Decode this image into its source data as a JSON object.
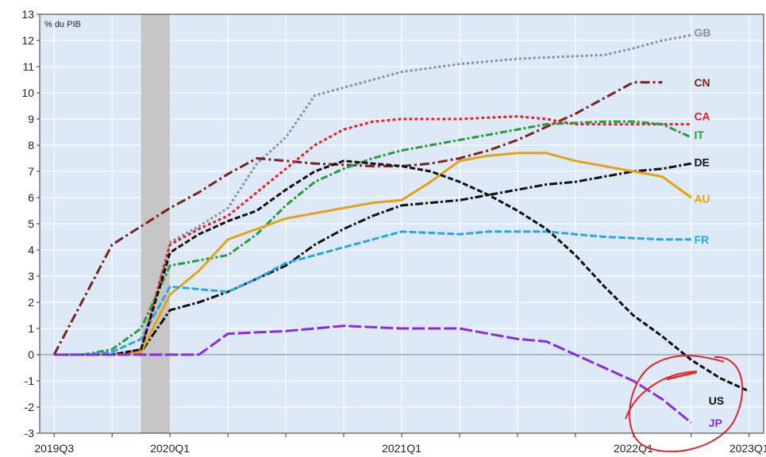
{
  "chart_data": {
    "type": "line",
    "ylabel": "% du PIB",
    "ylim": [
      -3,
      13
    ],
    "y_ticks": [
      -3,
      -2,
      -1,
      0,
      1,
      2,
      3,
      4,
      5,
      6,
      7,
      8,
      9,
      10,
      11,
      12,
      13
    ],
    "x_tick_labels": [
      {
        "label": "2019Q3",
        "x": 0
      },
      {
        "label": "2020Q1",
        "x": 2
      },
      {
        "label": "2021Q1",
        "x": 6
      },
      {
        "label": "2022Q1",
        "x": 10
      },
      {
        "label": "2023Q1",
        "x": 12
      }
    ],
    "x_range": [
      -0.25,
      12.25
    ],
    "shaded_region": [
      1.5,
      2
    ],
    "grid": true,
    "background_color": "#dde9f6",
    "series": [
      {
        "name": "GB",
        "color": "#8a9099",
        "dash": "3,3",
        "label_at": [
          11.05,
          12.3
        ],
        "x": [
          0,
          1,
          1.5,
          2,
          2.5,
          3,
          3.5,
          4,
          4.5,
          5,
          5.5,
          6,
          6.5,
          7,
          7.5,
          8,
          8.5,
          9,
          9.5,
          10,
          10.5,
          11
        ],
        "y": [
          0,
          0,
          0.1,
          4.3,
          4.9,
          5.6,
          7.3,
          8.3,
          9.9,
          10.2,
          10.5,
          10.8,
          10.95,
          11.1,
          11.2,
          11.3,
          11.35,
          11.4,
          11.45,
          11.7,
          12,
          12.2
        ]
      },
      {
        "name": "CN",
        "color": "#7a2222",
        "dash": "12,4,3,4",
        "label_at": [
          11.05,
          10.4
        ],
        "x": [
          0,
          0.5,
          1,
          1.5,
          2,
          2.5,
          3,
          3.5,
          4,
          4.5,
          5,
          5.5,
          6,
          6.5,
          7,
          7.5,
          8,
          8.5,
          9,
          9.5,
          10,
          10.5
        ],
        "y": [
          0,
          2.1,
          4.2,
          4.9,
          5.6,
          6.2,
          6.9,
          7.5,
          7.4,
          7.3,
          7.25,
          7.2,
          7.2,
          7.3,
          7.5,
          7.8,
          8.2,
          8.7,
          9.2,
          9.8,
          10.4,
          10.4
        ]
      },
      {
        "name": "CA",
        "color": "#e3232b",
        "dash": "4,3",
        "label_at": [
          11.05,
          9.1
        ],
        "x": [
          0,
          1,
          1.5,
          2,
          2.5,
          3,
          3.5,
          4,
          4.5,
          5,
          5.5,
          6,
          6.5,
          7,
          7.5,
          8,
          8.5,
          9,
          9.5,
          10,
          10.5,
          11
        ],
        "y": [
          0,
          0,
          0.2,
          4.2,
          4.8,
          5.3,
          6.2,
          7.1,
          8.0,
          8.6,
          8.9,
          9.0,
          9.0,
          9.0,
          9.05,
          9.1,
          9.0,
          8.8,
          8.8,
          8.8,
          8.8,
          8.8
        ]
      },
      {
        "name": "IT",
        "color": "#2a9a3c",
        "dash": "9,3,3,3",
        "label_at": [
          11.05,
          8.4
        ],
        "x": [
          0,
          0.5,
          1,
          1.5,
          2,
          2.5,
          3,
          3.5,
          4,
          4.5,
          5,
          5.5,
          6,
          6.5,
          7,
          7.5,
          8,
          8.5,
          9,
          9.5,
          10,
          10.5,
          11
        ],
        "y": [
          0,
          0,
          0.2,
          1.0,
          3.4,
          3.6,
          3.8,
          4.6,
          5.7,
          6.6,
          7.1,
          7.5,
          7.8,
          8.0,
          8.2,
          8.4,
          8.6,
          8.8,
          8.85,
          8.9,
          8.9,
          8.8,
          8.3
        ]
      },
      {
        "name": "DE",
        "color": "#111111",
        "dash": "10,3,3,3",
        "label_at": [
          11.05,
          7.35
        ],
        "x": [
          0,
          1,
          1.5,
          2,
          2.5,
          3,
          3.5,
          4,
          4.5,
          5,
          5.5,
          6,
          6.5,
          7,
          7.5,
          8,
          8.5,
          9,
          9.5,
          10,
          10.5,
          11
        ],
        "y": [
          0,
          0,
          0.1,
          1.7,
          2.0,
          2.4,
          2.9,
          3.4,
          4.2,
          4.8,
          5.3,
          5.7,
          5.8,
          5.9,
          6.1,
          6.3,
          6.5,
          6.6,
          6.8,
          7.0,
          7.1,
          7.3
        ]
      },
      {
        "name": "AU",
        "color": "#e2a31a",
        "dash": "",
        "label_at": [
          11.05,
          5.95
        ],
        "x": [
          0,
          1,
          1.5,
          2,
          2.5,
          3,
          3.5,
          4,
          4.5,
          5,
          5.5,
          6,
          6.5,
          7,
          7.5,
          8,
          8.5,
          9,
          9.5,
          10,
          10.5,
          11
        ],
        "y": [
          0,
          0,
          0.1,
          2.3,
          3.2,
          4.4,
          4.8,
          5.2,
          5.4,
          5.6,
          5.8,
          5.9,
          6.6,
          7.4,
          7.6,
          7.7,
          7.7,
          7.4,
          7.2,
          7.0,
          6.8,
          6.0
        ]
      },
      {
        "name": "FR",
        "color": "#29a8e0",
        "dash": "9,3",
        "label_at": [
          11.05,
          4.4
        ],
        "x": [
          0,
          0.5,
          1,
          1.5,
          2,
          2.5,
          3,
          3.5,
          4,
          4.5,
          5,
          5.5,
          6,
          6.5,
          7,
          7.5,
          8,
          8.5,
          9,
          9.5,
          10,
          10.5,
          11
        ],
        "y": [
          0,
          0,
          0.1,
          0.6,
          2.6,
          2.5,
          2.4,
          2.9,
          3.5,
          3.8,
          4.1,
          4.4,
          4.7,
          4.65,
          4.6,
          4.7,
          4.7,
          4.7,
          4.6,
          4.5,
          4.45,
          4.4,
          4.4
        ]
      },
      {
        "name": "US",
        "color": "#111111",
        "dash": "7,3",
        "label_at": [
          11.3,
          -1.75
        ],
        "x": [
          0,
          1,
          1.5,
          2,
          2.5,
          3,
          3.5,
          4,
          4.5,
          5,
          5.5,
          6,
          6.5,
          7,
          7.5,
          8,
          8.5,
          9,
          9.5,
          10,
          10.5,
          11,
          11.5,
          12
        ],
        "y": [
          0,
          0,
          0.2,
          3.9,
          4.6,
          5.1,
          5.5,
          6.3,
          7.0,
          7.4,
          7.3,
          7.2,
          7.0,
          6.6,
          6.1,
          5.5,
          4.8,
          3.8,
          2.6,
          1.5,
          0.7,
          -0.2,
          -0.9,
          -1.4
        ]
      },
      {
        "name": "JP",
        "color": "#8a2be2",
        "dash": "16,4",
        "label_at": [
          11.3,
          -2.6
        ],
        "x": [
          0,
          1,
          1.5,
          2,
          2.5,
          3,
          3.5,
          4,
          4.5,
          5,
          5.5,
          6,
          6.5,
          7,
          7.5,
          8,
          8.5,
          9,
          9.5,
          10,
          10.5,
          11
        ],
        "y": [
          0,
          0,
          0,
          0,
          0,
          0.8,
          0.85,
          0.9,
          1.0,
          1.1,
          1.05,
          1.0,
          1.0,
          1.0,
          0.8,
          0.6,
          0.5,
          0.0,
          -0.5,
          -1.0,
          -1.7,
          -2.6
        ]
      }
    ],
    "annotations": [
      {
        "type": "hand-drawn-circle",
        "color": "#e0262b",
        "around": "US/JP line ends"
      }
    ]
  }
}
